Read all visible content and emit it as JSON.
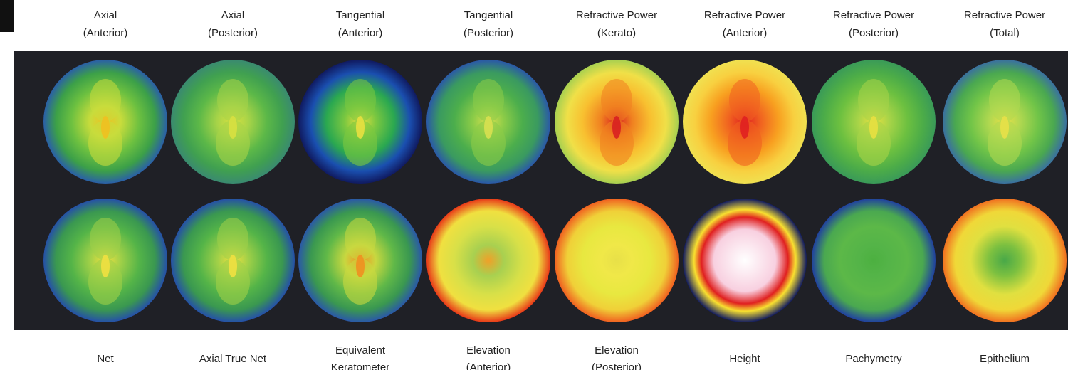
{
  "top_labels": [
    [
      "Axial",
      "(Anterior)"
    ],
    [
      "Axial",
      "(Posterior)"
    ],
    [
      "Tangential",
      "(Anterior)"
    ],
    [
      "Tangential",
      "(Posterior)"
    ],
    [
      "Refractive Power",
      "(Kerato)"
    ],
    [
      "Refractive Power",
      "(Anterior)"
    ],
    [
      "Refractive Power",
      "(Posterior)"
    ],
    [
      "Refractive Power",
      "(Total)"
    ]
  ],
  "bottom_labels": [
    [
      "Net"
    ],
    [
      "Axial True Net"
    ],
    [
      "Equivalent",
      "Keratometer"
    ],
    [
      "Elevation",
      "(Anterior)"
    ],
    [
      "Elevation",
      "(Posterior)"
    ],
    [
      "Height"
    ],
    [
      "Pachymetry"
    ],
    [
      "Epithelium"
    ]
  ]
}
